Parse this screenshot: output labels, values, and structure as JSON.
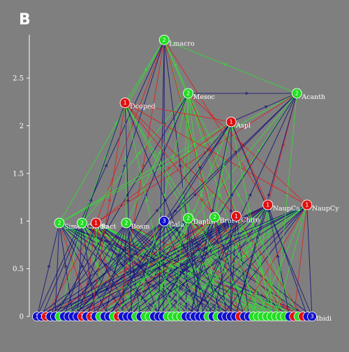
{
  "panel_letter": "B",
  "colors": {
    "background": "#7f7f7f",
    "red": "#e01010",
    "green": "#22dd22",
    "blue": "#1010cc",
    "edge_blue": "#15157a",
    "edge_red": "#dd2020",
    "edge_green": "#33e033"
  },
  "chart_data": {
    "type": "network",
    "y_ticks": [
      "0",
      "0.5",
      "1",
      "1.5",
      "2",
      "2.5"
    ],
    "nodes": [
      {
        "id": "Lmacro",
        "label": "Lmacro",
        "num": "2",
        "color": "green",
        "x": 0.415,
        "y": 2.9
      },
      {
        "id": "Mesoc",
        "label": "Mesoc",
        "num": "2",
        "color": "green",
        "x": 0.51,
        "y": 2.34
      },
      {
        "id": "Acanth",
        "label": "Acanth",
        "num": "2",
        "color": "green",
        "x": 0.94,
        "y": 2.34
      },
      {
        "id": "Dcoped",
        "label": "Dcoped",
        "num": "1",
        "color": "red",
        "x": 0.26,
        "y": 2.24
      },
      {
        "id": "Aspl",
        "label": "Aspl",
        "num": "1",
        "color": "red",
        "x": 0.68,
        "y": 2.04
      },
      {
        "id": "Simoc",
        "label": "Simoc",
        "num": "2",
        "color": "green",
        "x": 0.0,
        "y": 0.98
      },
      {
        "id": "Chydo",
        "label": "Chydo",
        "num": "2",
        "color": "green",
        "x": 0.09,
        "y": 0.98
      },
      {
        "id": "Bact",
        "label": "Bact",
        "num": "1",
        "color": "red",
        "x": 0.145,
        "y": 0.98
      },
      {
        "id": "Bosm",
        "label": "Bosm",
        "num": "2",
        "color": "green",
        "x": 0.265,
        "y": 0.98
      },
      {
        "id": "Cala",
        "label": "Cala",
        "num": "3",
        "color": "blue",
        "x": 0.415,
        "y": 1.0
      },
      {
        "id": "Daphn",
        "label": "Daphn",
        "num": "2",
        "color": "green",
        "x": 0.51,
        "y": 1.03
      },
      {
        "id": "Brach",
        "label": "Brach",
        "num": "2",
        "color": "green",
        "x": 0.615,
        "y": 1.04
      },
      {
        "id": "Chiro",
        "label": "Chiro",
        "num": "1",
        "color": "red",
        "x": 0.7,
        "y": 1.05
      },
      {
        "id": "NaupCa",
        "label": "NaupCa",
        "num": "1",
        "color": "red",
        "x": 0.825,
        "y": 1.17
      },
      {
        "id": "NaupCy",
        "label": "NaupCy",
        "num": "1",
        "color": "red",
        "x": 0.98,
        "y": 1.17
      }
    ],
    "basal_nodes": {
      "y": 0,
      "colors": [
        "blue",
        "blue",
        "red",
        "blue",
        "blue",
        "green",
        "blue",
        "blue",
        "blue",
        "blue",
        "red",
        "blue",
        "red",
        "blue",
        "green",
        "blue",
        "blue",
        "green",
        "red",
        "blue",
        "blue",
        "blue",
        "green",
        "blue",
        "green",
        "green",
        "blue",
        "blue",
        "blue",
        "green",
        "green",
        "green",
        "green",
        "blue",
        "blue",
        "blue",
        "blue",
        "blue",
        "green",
        "blue",
        "green",
        "blue",
        "blue",
        "blue",
        "blue",
        "red",
        "blue",
        "blue",
        "green",
        "green",
        "green",
        "green",
        "green",
        "green",
        "green",
        "green",
        "blue",
        "red",
        "green",
        "red",
        "blue",
        "blue"
      ],
      "nums": [
        "1",
        "1",
        "1",
        "",
        "",
        "",
        "",
        "",
        "",
        "",
        "1",
        "",
        "1",
        "",
        "",
        "",
        "",
        "",
        "1",
        "",
        "",
        "",
        "",
        "",
        "",
        "",
        "",
        "",
        "",
        "",
        "",
        "",
        "",
        "",
        "3",
        "",
        "",
        "",
        "",
        "",
        "",
        "",
        "",
        "",
        "",
        "",
        "",
        "",
        "",
        "",
        "",
        "",
        "",
        "",
        "",
        "",
        "",
        "",
        "",
        "",
        "",
        "3"
      ],
      "end_label": "Ibidi"
    }
  }
}
